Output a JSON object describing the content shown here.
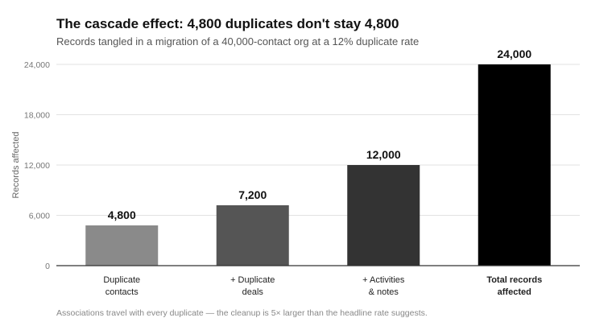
{
  "chart_data": {
    "type": "bar",
    "title": "The cascade effect: 4,800 duplicates don't stay 4,800",
    "subtitle": "Records tangled in a migration of a 40,000-contact org at a 12% duplicate rate",
    "ylabel": "Records affected",
    "xlabel": "",
    "ylim": [
      0,
      24000
    ],
    "yticks": [
      0,
      6000,
      12000,
      18000,
      24000
    ],
    "ytick_labels": [
      "0",
      "6,000",
      "12,000",
      "18,000",
      "24,000"
    ],
    "grid": true,
    "categories": [
      {
        "lines": [
          "Duplicate",
          "contacts"
        ],
        "bold": false
      },
      {
        "lines": [
          "+ Duplicate",
          "deals"
        ],
        "bold": false
      },
      {
        "lines": [
          "+ Activities",
          "& notes"
        ],
        "bold": false
      },
      {
        "lines": [
          "Total records",
          "affected"
        ],
        "bold": true
      }
    ],
    "values": [
      4800,
      7200,
      12000,
      24000
    ],
    "value_labels": [
      "4,800",
      "7,200",
      "12,000",
      "24,000"
    ],
    "colors": [
      "#8a8a8a",
      "#555555",
      "#333333",
      "#000000"
    ],
    "footnote": "Associations travel with every duplicate — the cleanup is 5× larger than the headline rate suggests."
  }
}
